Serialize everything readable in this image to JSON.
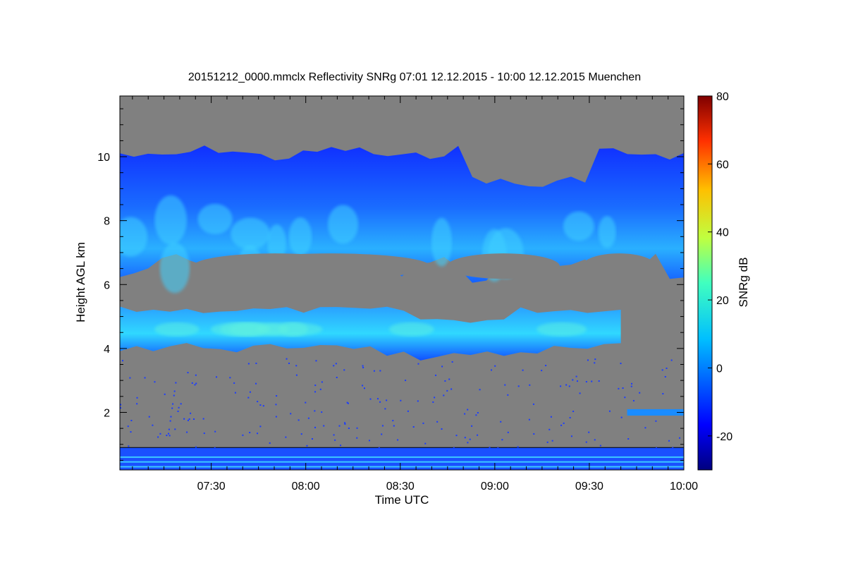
{
  "chart_data": {
    "type": "heatmap",
    "title": "20151212_0000.mmclx Reflectivity SNRg   07:01 12.12.2015 - 10:00 12.12.2015 Muenchen",
    "xlabel": "Time UTC",
    "ylabel": "Height AGL km",
    "colorbar_label": "SNRg dB",
    "x_range": [
      "07:01",
      "10:00"
    ],
    "x_ticks": [
      "07:30",
      "08:00",
      "08:30",
      "09:00",
      "09:30",
      "10:00"
    ],
    "y_range_km": [
      0.2,
      11.9
    ],
    "y_ticks": [
      "2",
      "4",
      "6",
      "8",
      "10"
    ],
    "colorbar_range_db": [
      -30,
      80
    ],
    "colorbar_ticks": [
      "-20",
      "0",
      "20",
      "40",
      "60",
      "80"
    ],
    "colormap": "jet",
    "no_signal_color": "#808080",
    "regions": [
      {
        "name": "upper cloud layer",
        "time_start": "07:01",
        "time_end": "10:00",
        "height_km": [
          6.0,
          10.7
        ],
        "snr_db_range": [
          -25,
          10
        ]
      },
      {
        "name": "mid cloud layer",
        "time_start": "07:01",
        "time_end": "09:40",
        "height_km": [
          3.6,
          5.4
        ],
        "snr_db_range": [
          -20,
          15
        ]
      },
      {
        "name": "low echo band",
        "time_start": "09:42",
        "time_end": "10:00",
        "height_km": [
          1.9,
          2.1
        ],
        "snr_db_range": [
          -20,
          5
        ]
      },
      {
        "name": "near-surface clutter",
        "time_start": "07:01",
        "time_end": "10:00",
        "height_km": [
          0.2,
          0.9
        ],
        "snr_db_range": [
          -25,
          5
        ]
      }
    ]
  }
}
